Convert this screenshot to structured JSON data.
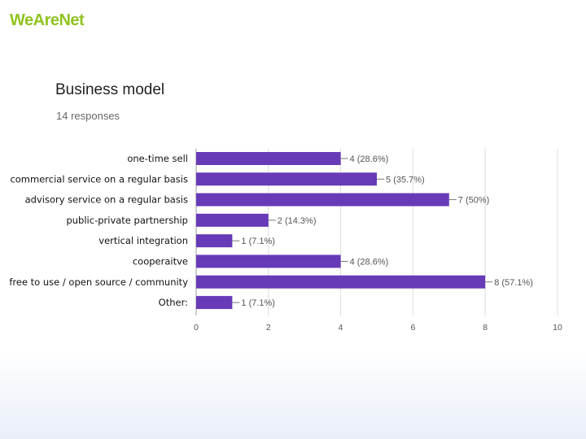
{
  "brand": {
    "logo_text": "WeAreNet"
  },
  "chart_data": {
    "type": "bar",
    "orientation": "horizontal",
    "title": "Business model",
    "subtitle": "14 responses",
    "categories": [
      "one-time sell",
      "commercial service on a regular basis",
      "advisory service on a regular basis",
      "public-private partnership",
      "vertical integration",
      "cooperaitve",
      "free to use / open source / community",
      "Other:"
    ],
    "values": [
      4,
      5,
      7,
      2,
      1,
      4,
      8,
      1
    ],
    "data_labels": [
      "4 (28.6%)",
      "5 (35.7%)",
      "7 (50%)",
      "2 (14.3%)",
      "1 (7.1%)",
      "4 (28.6%)",
      "8 (57.1%)",
      "1 (7.1%)"
    ],
    "xlim": [
      0,
      10
    ],
    "xticks": [
      "0",
      "2",
      "4",
      "6",
      "8",
      "10"
    ],
    "grid": true,
    "bar_color": "#673ab7"
  }
}
